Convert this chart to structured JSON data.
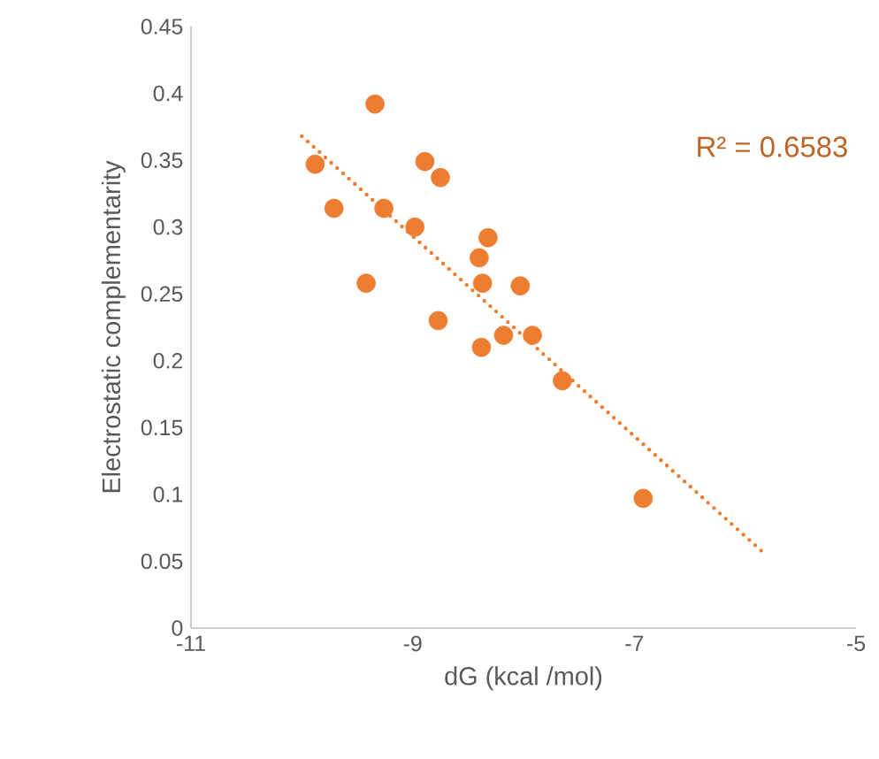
{
  "chart_data": {
    "type": "scatter",
    "xlabel": "dG (kcal /mol)",
    "ylabel": "Electrostatic complementarity",
    "xlim": [
      -11,
      -5
    ],
    "xticks": [
      -11,
      -9,
      -7,
      -5
    ],
    "ylim": [
      0,
      0.45
    ],
    "yticks": [
      0,
      0.05,
      0.1,
      0.15,
      0.2,
      0.25,
      0.3,
      0.35,
      0.4,
      0.45
    ],
    "annotations": [
      "R² = 0.6583"
    ],
    "series": [
      {
        "color": "#ed7d31",
        "marker": "circle",
        "x": [
          -9.88,
          -9.71,
          -9.34,
          -9.26,
          -9.42,
          -8.98,
          -8.89,
          -8.75,
          -8.77,
          -8.32,
          -8.4,
          -8.37,
          -8.03,
          -8.18,
          -8.38,
          -7.92,
          -7.65,
          -6.92
        ],
        "values": [
          0.347,
          0.314,
          0.392,
          0.314,
          0.258,
          0.3,
          0.349,
          0.337,
          0.23,
          0.292,
          0.277,
          0.258,
          0.256,
          0.219,
          0.21,
          0.219,
          0.185,
          0.097
        ]
      },
      {
        "type": "line",
        "color": "#ed7d31",
        "marker": "none",
        "line_style": "dotted",
        "x": [
          -10,
          -5.83
        ],
        "values": [
          0.368,
          0.056
        ]
      }
    ]
  }
}
